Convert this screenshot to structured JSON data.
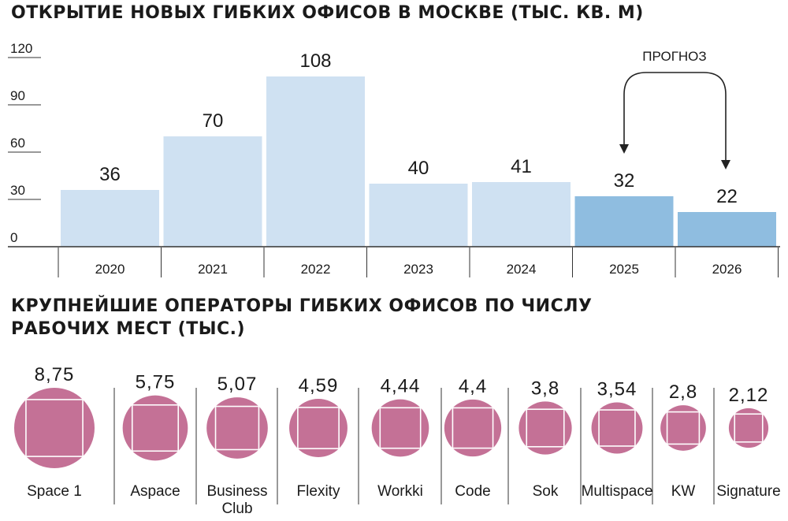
{
  "chart_data": [
    {
      "type": "bar",
      "title": "ОТКРЫТИЕ НОВЫХ ГИБКИХ ОФИСОВ В МОСКВЕ (ТЫС. КВ. М)",
      "categories": [
        "2020",
        "2021",
        "2022",
        "2023",
        "2024",
        "2025",
        "2026"
      ],
      "values": [
        36,
        70,
        108,
        40,
        41,
        32,
        22
      ],
      "forecast": [
        false,
        false,
        false,
        false,
        false,
        true,
        true
      ],
      "yticks": [
        0,
        30,
        60,
        90,
        120
      ],
      "ylim": [
        0,
        120
      ],
      "annotation": "ПРОГНОЗ",
      "colors": {
        "actual": "#cfe1f2",
        "forecast": "#8fbde0"
      }
    },
    {
      "type": "bubble",
      "title": "КРУПНЕЙШИЕ ОПЕРАТОРЫ ГИБКИХ ОФИСОВ ПО ЧИСЛУ РАБОЧИХ МЕСТ (ТЫС.)",
      "title_lines": [
        "КРУПНЕЙШИЕ ОПЕРАТОРЫ ГИБКИХ ОФИСОВ ПО ЧИСЛУ",
        "РАБОЧИХ МЕСТ (ТЫС.)"
      ],
      "categories": [
        "Space 1",
        "Aspace",
        "Business Club",
        "Flexity",
        "Workki",
        "Code",
        "Sok",
        "Multispace",
        "KW",
        "Signature"
      ],
      "category_lines": [
        [
          "Space 1"
        ],
        [
          "Aspace"
        ],
        [
          "Business",
          "Club"
        ],
        [
          "Flexity"
        ],
        [
          "Workki"
        ],
        [
          "Code"
        ],
        [
          "Sok"
        ],
        [
          "Multispace"
        ],
        [
          "KW"
        ],
        [
          "Signature"
        ]
      ],
      "values": [
        8.75,
        5.75,
        5.07,
        4.59,
        4.44,
        4.4,
        3.8,
        3.54,
        2.8,
        2.12
      ],
      "value_labels": [
        "8,75",
        "5,75",
        "5,07",
        "4,59",
        "4,44",
        "4,4",
        "3,8",
        "3,54",
        "2,8",
        "2,12"
      ],
      "colors": {
        "bubble": "#c47196"
      }
    }
  ]
}
